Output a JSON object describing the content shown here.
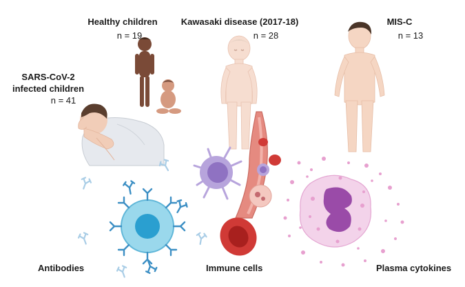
{
  "groups": {
    "healthy": {
      "title": "Healthy children",
      "count": "n = 19"
    },
    "kawasaki": {
      "title": "Kawasaki disease (2017-18)",
      "count": "n = 28"
    },
    "misc": {
      "title": "MIS-C",
      "count": "n = 13"
    },
    "sarscov2": {
      "title_line1": "SARS-CoV-2",
      "title_line2": "infected children",
      "count": "n = 41"
    }
  },
  "analyses": {
    "antibodies": "Antibodies",
    "immune_cells": "Immune cells",
    "plasma_cytokines": "Plasma cytokines"
  },
  "colors": {
    "skin_dark": "#7a4a37",
    "skin_light": "#f6ddd0",
    "hair": "#4a3528",
    "antibody_blue": "#3c8fc4",
    "cell_cyan": "#9ad8ec",
    "cell_core": "#2a9fd0",
    "immune_purple": "#8f72c2",
    "rbc_red": "#d03a36",
    "vessel_red": "#e58a80",
    "cytokine_pink": "#e7a0cf",
    "neutrophil_purple": "#9a4ba8"
  },
  "icons": [
    "sick-child-icon",
    "healthy-children-icon",
    "kawasaki-child-icon",
    "misc-child-icon",
    "antibody-icon",
    "b-cell-icon",
    "dendritic-cell-icon",
    "blood-vessel-icon",
    "red-blood-cell-icon",
    "neutrophil-icon",
    "cytokine-dots-icon"
  ]
}
